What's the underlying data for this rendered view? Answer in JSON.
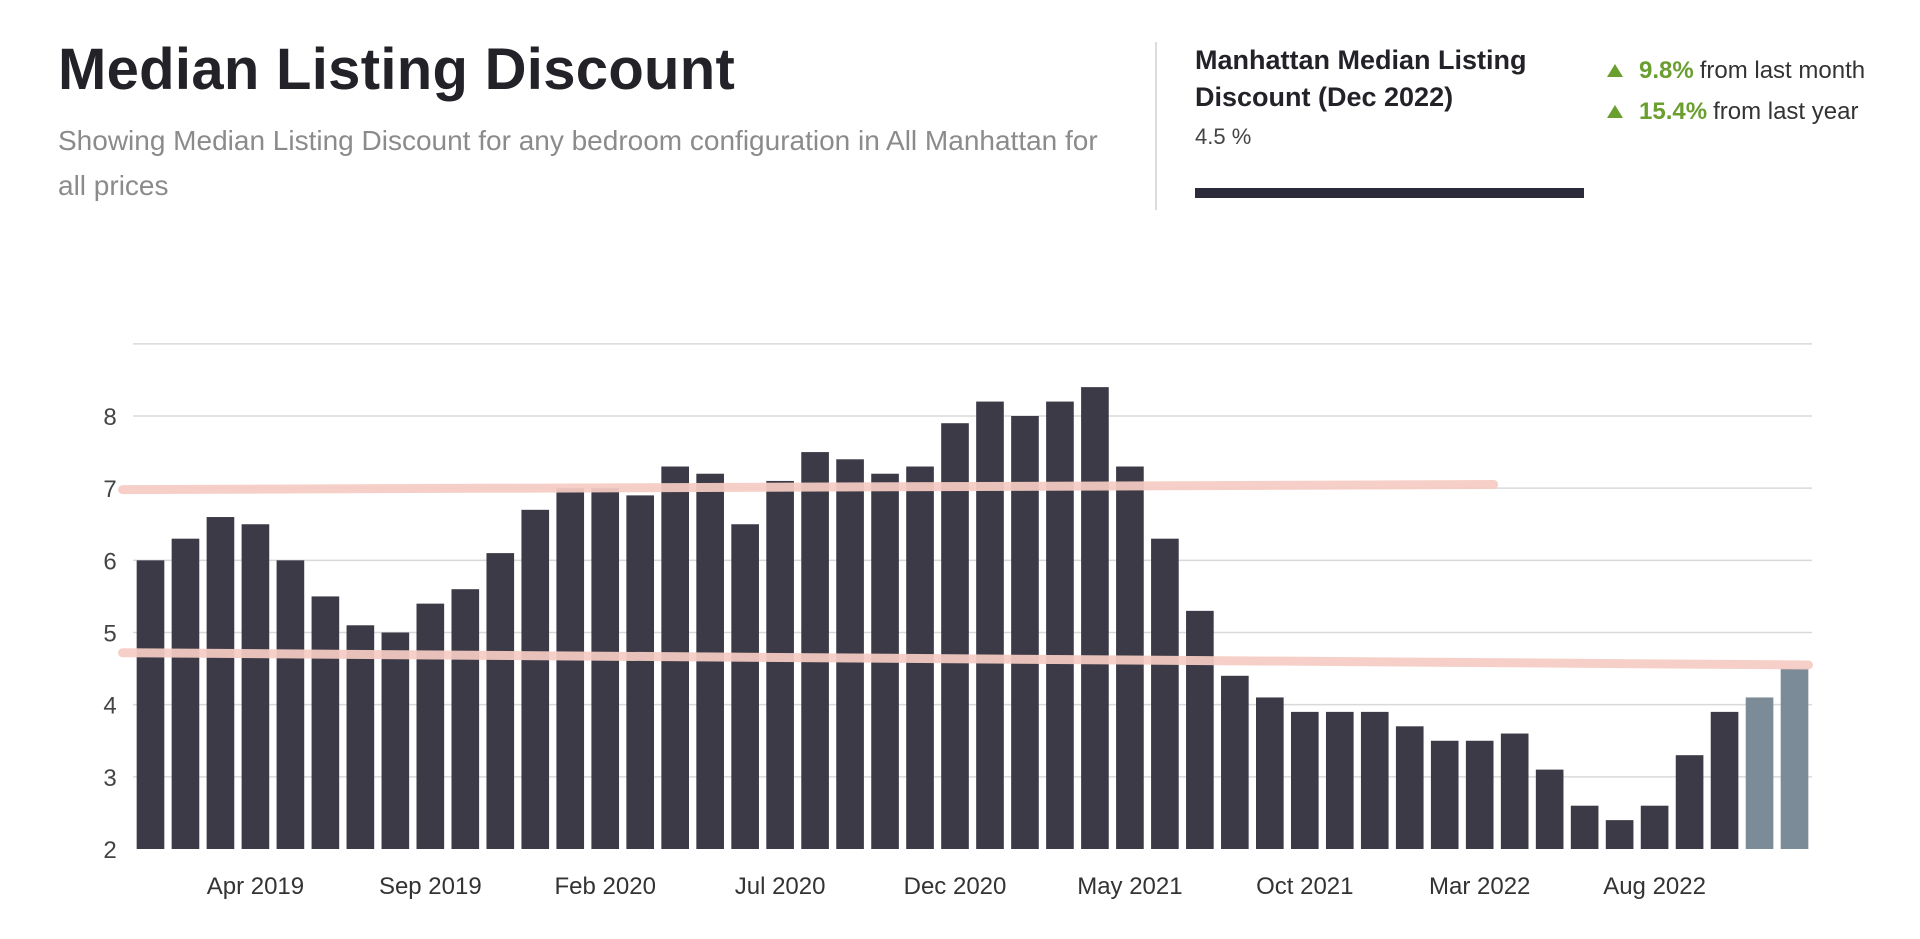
{
  "header": {
    "title": "Median Listing Discount",
    "subtitle": "Showing Median Listing Discount for any bedroom configuration in All Manhattan for all prices"
  },
  "stat": {
    "title": "Manhattan Median Listing Discount  (Dec 2022)",
    "value": "4.5 %",
    "changes": [
      {
        "value": "9.8%",
        "text": "from last month",
        "direction": "up"
      },
      {
        "value": "15.4%",
        "text": "from last year",
        "direction": "up"
      }
    ]
  },
  "colors": {
    "bar": "#3b3a46",
    "bar_recent": "#7c8b98",
    "trend_line": "#f6cdc4",
    "grid": "#d9d9d9",
    "positive": "#6a9e2e"
  },
  "chart_data": {
    "type": "bar",
    "title": "Median Listing Discount",
    "xlabel": "",
    "ylabel": "",
    "ylim": [
      2,
      9
    ],
    "yticks": [
      2,
      3,
      4,
      5,
      6,
      7,
      8
    ],
    "grid": true,
    "categories": [
      "Jan 2019",
      "Feb 2019",
      "Mar 2019",
      "Apr 2019",
      "May 2019",
      "Jun 2019",
      "Jul 2019",
      "Aug 2019",
      "Sep 2019",
      "Oct 2019",
      "Nov 2019",
      "Dec 2019",
      "Jan 2020",
      "Feb 2020",
      "Mar 2020",
      "Apr 2020",
      "May 2020",
      "Jun 2020",
      "Jul 2020",
      "Aug 2020",
      "Sep 2020",
      "Oct 2020",
      "Nov 2020",
      "Dec 2020",
      "Jan 2021",
      "Feb 2021",
      "Mar 2021",
      "Apr 2021",
      "May 2021",
      "Jun 2021",
      "Jul 2021",
      "Aug 2021",
      "Sep 2021",
      "Oct 2021",
      "Nov 2021",
      "Dec 2021",
      "Jan 2022",
      "Feb 2022",
      "Mar 2022",
      "Apr 2022",
      "May 2022",
      "Jun 2022",
      "Jul 2022",
      "Aug 2022",
      "Sep 2022",
      "Oct 2022",
      "Nov 2022",
      "Dec 2022"
    ],
    "values": [
      6.0,
      6.3,
      6.6,
      6.5,
      6.0,
      5.5,
      5.1,
      5.0,
      5.4,
      5.6,
      6.1,
      6.7,
      7.0,
      7.0,
      6.9,
      7.3,
      7.2,
      6.5,
      7.1,
      7.5,
      7.4,
      7.2,
      7.3,
      7.9,
      8.2,
      8.0,
      8.2,
      8.4,
      7.3,
      6.3,
      5.3,
      4.4,
      4.1,
      3.9,
      3.9,
      3.9,
      3.7,
      3.5,
      3.5,
      3.6,
      3.1,
      2.6,
      2.4,
      2.6,
      3.3,
      3.9,
      4.1,
      4.5
    ],
    "highlight_last": 2,
    "xtick_labels": [
      {
        "index": 3,
        "label": "Apr 2019"
      },
      {
        "index": 8,
        "label": "Sep 2019"
      },
      {
        "index": 13,
        "label": "Feb 2020"
      },
      {
        "index": 18,
        "label": "Jul 2020"
      },
      {
        "index": 23,
        "label": "Dec 2020"
      },
      {
        "index": 28,
        "label": "May 2021"
      },
      {
        "index": 33,
        "label": "Oct 2021"
      },
      {
        "index": 38,
        "label": "Mar 2022"
      },
      {
        "index": 43,
        "label": "Aug 2022"
      }
    ],
    "annotations": [
      {
        "type": "hand-drawn-line",
        "from": {
          "index": 0,
          "y": 6.98
        },
        "to": {
          "index": 38,
          "y": 7.05
        }
      },
      {
        "type": "hand-drawn-line",
        "from": {
          "index": 0,
          "y": 4.72
        },
        "to": {
          "index": 47,
          "y": 4.55
        }
      }
    ]
  }
}
